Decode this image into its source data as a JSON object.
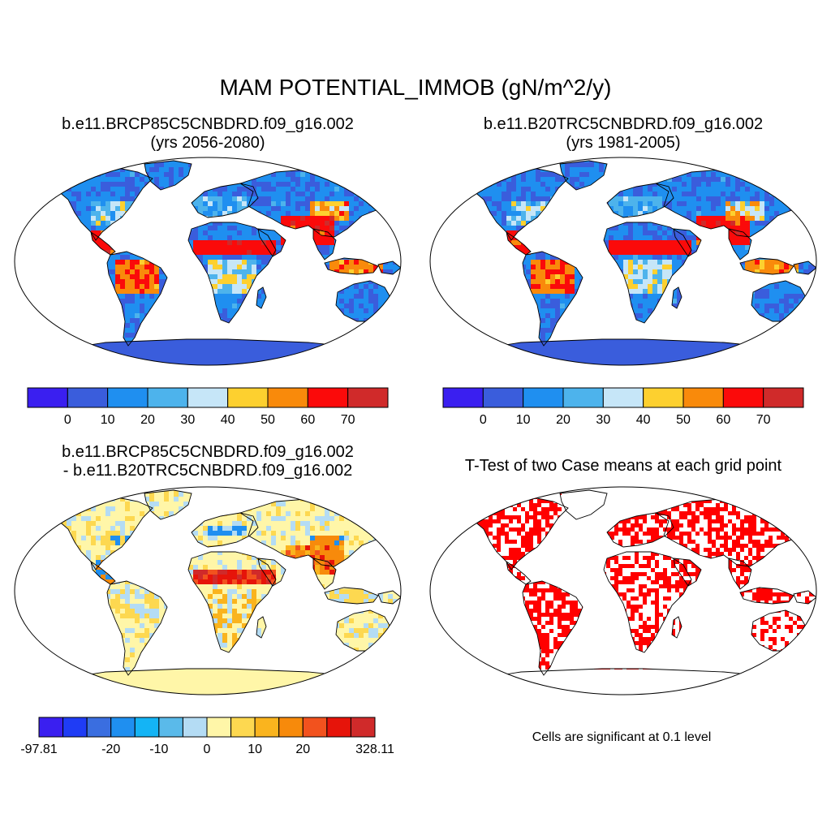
{
  "main_title": "MAM POTENTIAL_IMMOB (gN/m^2/y)",
  "panels": [
    {
      "title_line1": "b.e11.BRCP85C5CNBDRD.f09_g16.002",
      "title_line2": "(yrs 2056-2080)",
      "colorbar": {
        "colors": [
          "#3a1ff0",
          "#3a5ddc",
          "#1f8ff0",
          "#4db3ec",
          "#c6e6f8",
          "#fdd02f",
          "#f98a0b",
          "#fb0a0a",
          "#d02a2a"
        ],
        "tick_labels": [
          "0",
          "10",
          "20",
          "30",
          "40",
          "50",
          "60",
          "70"
        ]
      }
    },
    {
      "title_line1": "b.e11.B20TRC5CNBDRD.f09_g16.002",
      "title_line2": "(yrs 1981-2005)",
      "colorbar": {
        "colors": [
          "#3a1ff0",
          "#3a5ddc",
          "#1f8ff0",
          "#4db3ec",
          "#c6e6f8",
          "#fdd02f",
          "#f98a0b",
          "#fb0a0a",
          "#d02a2a"
        ],
        "tick_labels": [
          "0",
          "10",
          "20",
          "30",
          "40",
          "50",
          "60",
          "70"
        ]
      }
    },
    {
      "title_line1": "b.e11.BRCP85C5CNBDRD.f09_g16.002",
      "title_line2": "- b.e11.B20TRC5CNBDRD.f09_g16.002",
      "colorbar": {
        "colors": [
          "#3a1ff0",
          "#1f3cf5",
          "#3a6ee0",
          "#1f8ff0",
          "#14b4f5",
          "#5abaea",
          "#b4dcf4",
          "#fff6a8",
          "#fdd850",
          "#fab41e",
          "#f78a0b",
          "#f2521e",
          "#e6140a",
          "#d02a2a"
        ],
        "tick_labels": [
          "-97.81",
          "-20",
          "-10",
          "0",
          "10",
          "20",
          "328.11"
        ]
      }
    },
    {
      "title_line1": "T-Test of two Case means at each grid point",
      "note": "Cells are significant at 0.1 level"
    }
  ],
  "style": {
    "ocean": "#ffffff",
    "land_outline": "#000000",
    "antarctica_base": "#3a5ddc",
    "diff_base": "#fff6a8",
    "ttest_fill": "#ff0000"
  }
}
